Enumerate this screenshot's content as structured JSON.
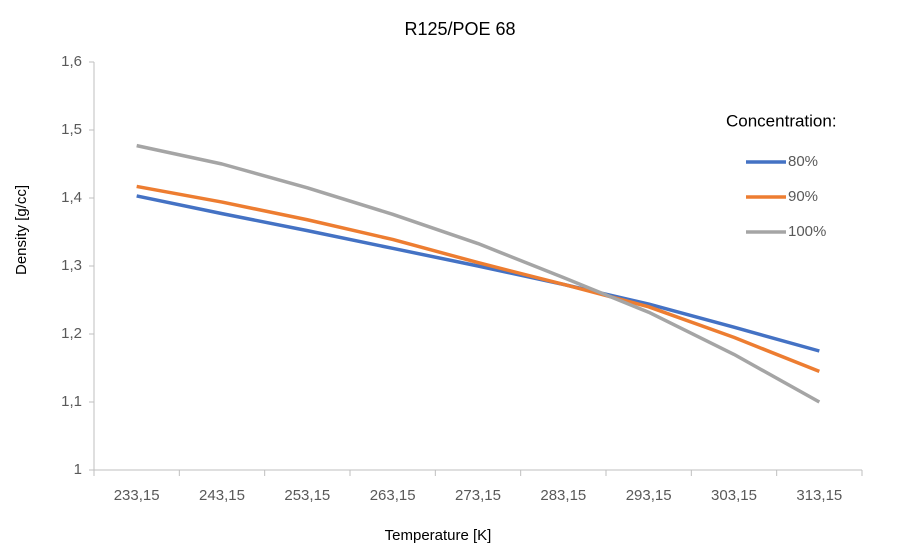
{
  "chart_data": {
    "type": "line",
    "title": "R125/POE 68",
    "x_label": "Temperature [K]",
    "y_label": "Density [g/cc]",
    "categories": [
      "233,15",
      "243,15",
      "253,15",
      "263,15",
      "273,15",
      "283,15",
      "293,15",
      "303,15",
      "313,15"
    ],
    "series": [
      {
        "name": "80%",
        "color": "#4472c4",
        "values": [
          1.403,
          1.377,
          1.352,
          1.326,
          1.3,
          1.273,
          1.244,
          1.21,
          1.175
        ]
      },
      {
        "name": "90%",
        "color": "#ed7d31",
        "values": [
          1.417,
          1.394,
          1.368,
          1.339,
          1.305,
          1.273,
          1.24,
          1.195,
          1.145
        ]
      },
      {
        "name": "100%",
        "color": "#a5a5a5",
        "values": [
          1.477,
          1.45,
          1.415,
          1.376,
          1.333,
          1.283,
          1.232,
          1.17,
          1.1
        ]
      }
    ],
    "legend_title": "Concentration:",
    "legend": "right",
    "ylim": [
      1,
      1.6
    ],
    "yticks": [
      1,
      {
        "value": 1.1,
        "label": "1,1"
      },
      {
        "value": 1.2,
        "label": "1,2"
      },
      {
        "value": 1.3,
        "label": "1,3"
      },
      {
        "value": 1.4,
        "label": "1,4"
      },
      {
        "value": 1.5,
        "label": "1,5"
      },
      {
        "value": 1.6,
        "label": "1,6"
      }
    ],
    "grid": false
  }
}
